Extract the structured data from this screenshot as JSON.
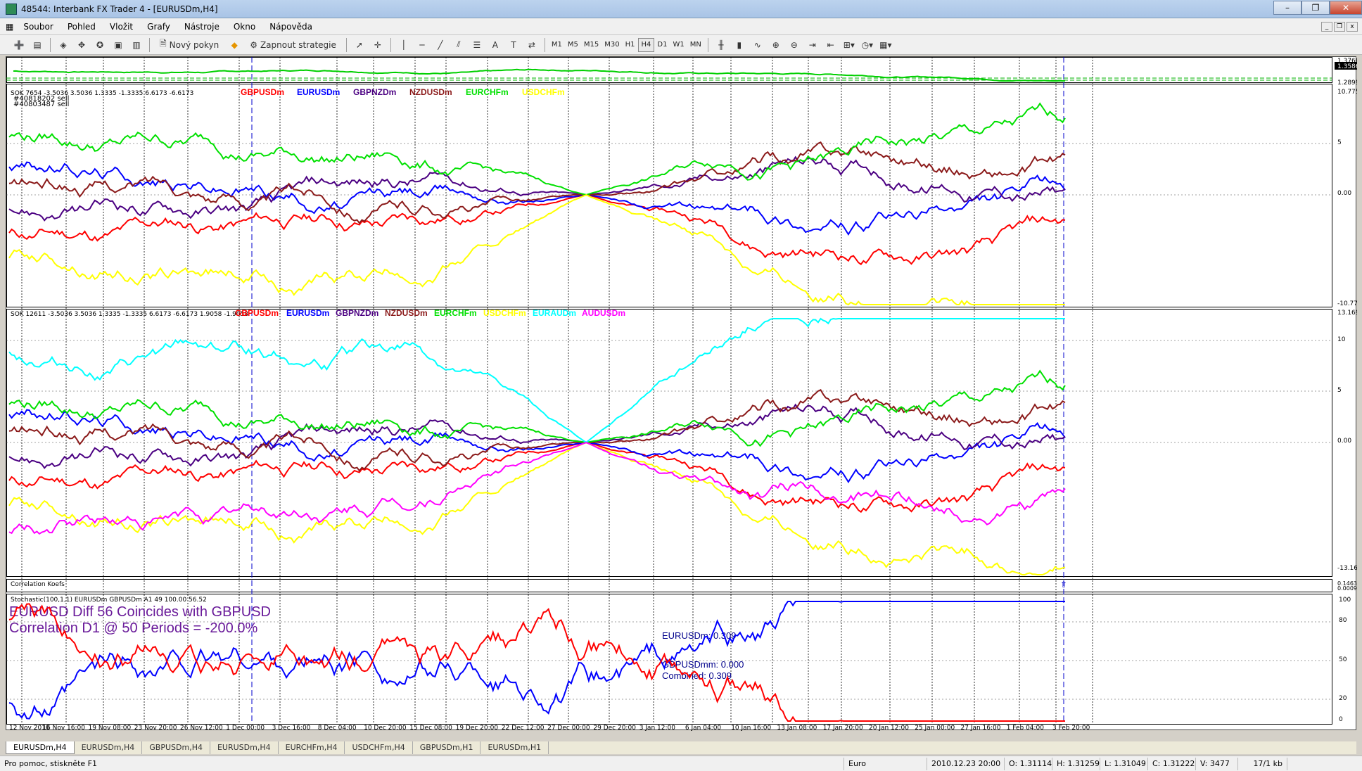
{
  "window": {
    "title": "48544: Interbank FX Trader 4 - [EURUSDm,H4]"
  },
  "menu": [
    "Soubor",
    "Pohled",
    "Vložit",
    "Grafy",
    "Nástroje",
    "Okno",
    "Nápověda"
  ],
  "toolbar": {
    "new_order": "Nový pokyn",
    "strategy": "Zapnout strategie",
    "timeframes": [
      "M1",
      "M5",
      "M15",
      "M30",
      "H1",
      "H4",
      "D1",
      "W1",
      "MN"
    ],
    "active_timeframe": "H4"
  },
  "main_panel": {
    "order1": "#40818202 sell",
    "order2": "#40803487 sell",
    "scale": [
      "1.37660",
      "1.35861",
      "1.28990"
    ]
  },
  "panel1": {
    "header": "SOK 7654 -3.5036 3.5036 1.3335 -1.3335 6.6173 -6.6173",
    "legend": [
      "GBPUSDm",
      "EURUSDm",
      "GBPNZDm",
      "NZDUSDm",
      "EURCHFm",
      "USDCHFm"
    ],
    "scale": [
      "10.7753",
      "5",
      "0.00",
      "-10.7753"
    ]
  },
  "panel2": {
    "header": "SOK 12611 -3.5036 3.5036 1.3335 -1.3335 6.6173 -6.6173 1.9058 -1.9058",
    "legend": [
      "GBPUSDm",
      "EURUSDm",
      "GBPNZDm",
      "NZDUSDm",
      "EURCHFm",
      "USDCHFm",
      "EURAUDm",
      "AUDUSDm"
    ],
    "scale": [
      "13.1694",
      "10",
      "5",
      "0.00",
      "-13.1694"
    ]
  },
  "panel3": {
    "header": "Correlation Koefs",
    "scale": [
      "0.146313",
      "0.000994"
    ]
  },
  "panel4": {
    "header": "Stochastic(100,1,1) EURUSDm GBPUSDm A1 49 100.00 56.52",
    "line1": "EURUSD  Diff 56 Coincides with   GBPUSD",
    "line2": "Correlation D1 @ 50 Periods = -200.0%",
    "readout": [
      "EURUSDm: 0.309",
      "GBPUSDmm: 0.000",
      "Combined: 0.309"
    ],
    "scale": [
      "100",
      "80",
      "50",
      "20",
      "0"
    ]
  },
  "time_axis": [
    "12 Nov 2010",
    "16 Nov 16:00",
    "19 Nov 08:00",
    "23 Nov 20:00",
    "26 Nov 12:00",
    "1 Dec 00:00",
    "3 Dec 16:00",
    "8 Dec 04:00",
    "10 Dec 20:00",
    "15 Dec 08:00",
    "19 Dec 20:00",
    "22 Dec 12:00",
    "27 Dec 00:00",
    "29 Dec 20:00",
    "3 Jan 12:00",
    "6 Jan 04:00",
    "10 Jan 16:00",
    "13 Jan 08:00",
    "17 Jan 20:00",
    "20 Jan 12:00",
    "25 Jan 00:00",
    "27 Jan 16:00",
    "1 Feb 04:00",
    "3 Feb 20:00"
  ],
  "tabs": [
    "EURUSDm,H4",
    "EURUSDm,H4",
    "GBPUSDm,H4",
    "EURUSDm,H4",
    "EURCHFm,H4",
    "USDCHFm,H4",
    "GBPUSDm,H1",
    "EURUSDm,H1"
  ],
  "status": {
    "help": "Pro pomoc, stiskněte F1",
    "profile": "Euro",
    "time": "2010.12.23 20:00",
    "open": "O: 1.31114",
    "high": "H: 1.31259",
    "low": "L: 1.31049",
    "close": "C: 1.31222",
    "volume": "V: 3477",
    "traffic": "17/1 kb"
  },
  "colors": {
    "GBPUSDm": "#ff0000",
    "EURUSDm": "#0000ff",
    "GBPNZDm": "#4b0082",
    "NZDUSDm": "#8b1a1a",
    "EURCHFm": "#00e000",
    "USDCHFm": "#ffff00",
    "EURAUDm": "#00ffff",
    "AUDUSDm": "#ff00ff"
  }
}
